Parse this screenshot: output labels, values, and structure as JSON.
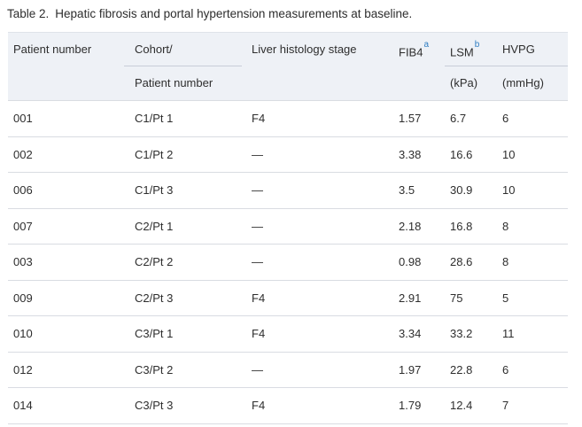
{
  "title": {
    "label": "Table 2.",
    "text": "Hepatic fibrosis and portal hypertension measurements at baseline."
  },
  "colors": {
    "header_background": "#eef1f6",
    "row_border": "#d9dce2",
    "header_rule": "#c7cdd8",
    "footnote_blue": "#2e7dc2",
    "text": "#2d2d2d"
  },
  "table": {
    "columns": [
      {
        "id": "patient_number",
        "label": "Patient number"
      },
      {
        "id": "cohort_patient",
        "label_line1": "Cohort/",
        "label_line2": "Patient number"
      },
      {
        "id": "liver_histology",
        "label": "Liver histology stage"
      },
      {
        "id": "fib4",
        "label": "FIB4",
        "footnote": "a"
      },
      {
        "id": "lsm",
        "label": "LSM",
        "footnote": "b",
        "unit": "(kPa)"
      },
      {
        "id": "hvpg",
        "label": "HVPG",
        "unit": "(mmHg)"
      }
    ],
    "rows": [
      [
        "001",
        "C1/Pt 1",
        "F4",
        "1.57",
        "6.7",
        "6"
      ],
      [
        "002",
        "C1/Pt 2",
        "—",
        "3.38",
        "16.6",
        "10"
      ],
      [
        "006",
        "C1/Pt 3",
        "—",
        "3.5",
        "30.9",
        "10"
      ],
      [
        "007",
        "C2/Pt 1",
        "—",
        "2.18",
        "16.8",
        "8"
      ],
      [
        "003",
        "C2/Pt 2",
        "—",
        "0.98",
        "28.6",
        "8"
      ],
      [
        "009",
        "C2/Pt 3",
        "F4",
        "2.91",
        "75",
        "5"
      ],
      [
        "010",
        "C3/Pt 1",
        "F4",
        "3.34",
        "33.2",
        "11"
      ],
      [
        "012",
        "C3/Pt 2",
        "—",
        "1.97",
        "22.8",
        "6"
      ],
      [
        "014",
        "C3/Pt 3",
        "F4",
        "1.79",
        "12.4",
        "7"
      ]
    ]
  }
}
